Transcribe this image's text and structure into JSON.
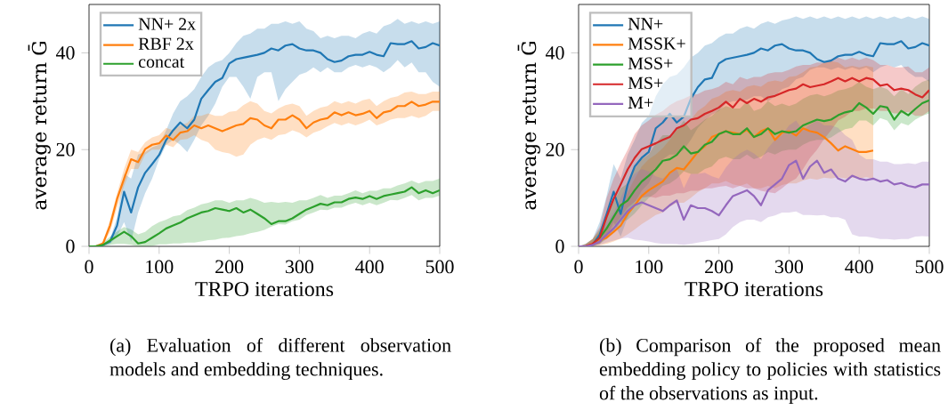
{
  "chart_data": [
    {
      "type": "line",
      "xlabel": "TRPO iterations",
      "ylabel": "average return Ḡ",
      "xlim": [
        0,
        500
      ],
      "ylim": [
        0,
        50
      ],
      "xticks": [
        0,
        100,
        200,
        300,
        400,
        500
      ],
      "yticks": [
        0,
        20,
        40
      ],
      "legend": "top left",
      "line_style": "solid",
      "x": [
        0,
        10,
        20,
        30,
        40,
        50,
        60,
        70,
        80,
        90,
        100,
        110,
        120,
        130,
        140,
        150,
        160,
        170,
        180,
        190,
        200,
        210,
        220,
        230,
        240,
        250,
        260,
        270,
        280,
        290,
        300,
        310,
        320,
        330,
        340,
        350,
        360,
        370,
        380,
        390,
        400,
        410,
        420,
        430,
        440,
        450,
        460,
        470,
        480,
        490,
        500
      ],
      "series": [
        {
          "name": "NN+ 2x",
          "color": "#1f77b4",
          "values": [
            0,
            0,
            0.3,
            1,
            4.3,
            11.3,
            7,
            12.2,
            15.2,
            17,
            18.9,
            22,
            24,
            25.6,
            24.4,
            26.2,
            30.5,
            32.3,
            34,
            34.8,
            37.8,
            38.7,
            39,
            39.3,
            39.6,
            40,
            40.9,
            40.5,
            41.5,
            41.8,
            40.9,
            40.5,
            40.5,
            40,
            38.7,
            38.1,
            38.4,
            39.3,
            39.6,
            39.6,
            40.2,
            39.6,
            39.3,
            42,
            41.8,
            41.8,
            42.4,
            40.9,
            41.2,
            42,
            41.5
          ],
          "lower": [
            0,
            0,
            0.1,
            0.5,
            2,
            5,
            1,
            7,
            11,
            14,
            18,
            21,
            22,
            21,
            19.5,
            22,
            25,
            27,
            29.5,
            33,
            35,
            35,
            33,
            30.5,
            35,
            36,
            36,
            30,
            32.5,
            34,
            35.5,
            36,
            37,
            36,
            37,
            36,
            36,
            37,
            37.5,
            37,
            37.5,
            37,
            36,
            37,
            38.5,
            37,
            38,
            36,
            36,
            34,
            33
          ],
          "upper": [
            0,
            0.1,
            0.5,
            1.5,
            6,
            15,
            14,
            19,
            19.5,
            20.5,
            21,
            24,
            27.5,
            30,
            31,
            32.5,
            35,
            37,
            38,
            38.5,
            40,
            42,
            43.5,
            44,
            45,
            45,
            46,
            46,
            46.5,
            46,
            46.5,
            45,
            44.5,
            43,
            43.5,
            43,
            43.5,
            43.5,
            43,
            44,
            44.5,
            44,
            45.5,
            46,
            47,
            46,
            46.5,
            46,
            46.5,
            46,
            46.5
          ]
        },
        {
          "name": "RBF 2x",
          "color": "#ff7f0e",
          "values": [
            0,
            0,
            0.6,
            4.3,
            9.8,
            14,
            18,
            17.4,
            20.1,
            21,
            21.3,
            22.9,
            22,
            23.5,
            23.8,
            25,
            24.4,
            25,
            24.4,
            23.8,
            24.4,
            25,
            25.3,
            26.5,
            26.2,
            25,
            24.4,
            26.2,
            26.2,
            27.1,
            26.2,
            24.4,
            25.6,
            26.2,
            26.5,
            27.7,
            27.1,
            27.7,
            27.1,
            27.4,
            28,
            26.5,
            27.7,
            28,
            29,
            29,
            29.9,
            29,
            29.3,
            29.9,
            29.9
          ],
          "lower": [
            0,
            0,
            0.3,
            3,
            8,
            12.5,
            16,
            16,
            19,
            20,
            20,
            21,
            20.5,
            22,
            22.2,
            23,
            22,
            21.5,
            20,
            19.5,
            19.2,
            18.5,
            19,
            21,
            22,
            22.5,
            22,
            23,
            23.2,
            24,
            23.5,
            22.5,
            23.5,
            24,
            24.8,
            25.5,
            25,
            25.5,
            25,
            25.5,
            26.2,
            25,
            25.5,
            26.2,
            26.5,
            26.5,
            27,
            26.5,
            27,
            28,
            28
          ],
          "upper": [
            0,
            0,
            1,
            5.5,
            11,
            16,
            20,
            19.5,
            21.5,
            22.5,
            23,
            24.5,
            24,
            25,
            25.5,
            27,
            27,
            27.5,
            27,
            27,
            27.8,
            28,
            29.2,
            30,
            29.5,
            28,
            27.5,
            28.5,
            29.2,
            29.5,
            29,
            27,
            28,
            28.7,
            29,
            30,
            29.5,
            30,
            29.5,
            30.2,
            30.5,
            29,
            30,
            30.7,
            31,
            31.8,
            32,
            31.5,
            31.5,
            32,
            32
          ]
        },
        {
          "name": "concat",
          "color": "#2ca02c",
          "values": [
            0,
            0,
            0.3,
            1.2,
            2.1,
            3,
            2.1,
            0.6,
            0.9,
            1.8,
            2.7,
            3.7,
            4.3,
            4.9,
            5.8,
            6.4,
            7,
            7.3,
            7.9,
            7.6,
            7.3,
            7.9,
            7,
            7.6,
            6.7,
            5.8,
            4.6,
            5.2,
            5.2,
            5.8,
            6.7,
            7.6,
            8.2,
            8.8,
            8.5,
            9.1,
            9.1,
            9.8,
            10.1,
            9.8,
            10.4,
            9.8,
            10.4,
            10.7,
            11,
            11.3,
            12.2,
            11,
            11.6,
            11,
            11.6
          ],
          "lower": [
            0,
            0,
            0.05,
            0.3,
            0.5,
            0.5,
            0.3,
            0,
            0,
            0.1,
            0.4,
            0.4,
            0.6,
            0.6,
            0.8,
            0.8,
            1,
            1.3,
            1.4,
            1.7,
            1.8,
            2.1,
            2.3,
            2.7,
            3,
            3.4,
            4.1,
            4.6,
            4.5,
            5.2,
            5.5,
            6.5,
            7,
            7.6,
            7.5,
            8,
            8,
            8.6,
            9,
            8.5,
            9,
            8.5,
            9,
            9.6,
            9.5,
            10,
            10.6,
            9.5,
            10,
            10,
            10.5
          ],
          "upper": [
            0,
            0.3,
            0.8,
            2,
            3.1,
            4,
            3.5,
            2.5,
            3,
            4.2,
            5,
            5.5,
            6.2,
            6.5,
            7.5,
            8,
            8.7,
            9,
            9.5,
            9.5,
            9,
            9.5,
            9.5,
            10,
            9.6,
            9,
            9.2,
            9,
            9.2,
            9,
            9.5,
            9.5,
            10,
            10.6,
            10,
            10.5,
            10.5,
            11,
            11.6,
            11,
            11.5,
            11.5,
            12,
            12,
            12.6,
            13,
            13.6,
            13,
            13.5,
            13.5,
            14
          ]
        }
      ],
      "annotations": [
        "(a) Evaluation of different observation models and embedding techniques."
      ]
    },
    {
      "type": "line",
      "xlabel": "TRPO iterations",
      "ylabel": "average return Ḡ",
      "xlim": [
        0,
        500
      ],
      "ylim": [
        0,
        50
      ],
      "xticks": [
        0,
        100,
        200,
        300,
        400,
        500
      ],
      "yticks": [
        0,
        20,
        40
      ],
      "legend": "top left",
      "line_style": "solid",
      "x": [
        0,
        10,
        20,
        30,
        40,
        50,
        60,
        70,
        80,
        90,
        100,
        110,
        120,
        130,
        140,
        150,
        160,
        170,
        180,
        190,
        200,
        210,
        220,
        230,
        240,
        250,
        260,
        270,
        280,
        290,
        300,
        310,
        320,
        330,
        340,
        350,
        360,
        370,
        380,
        390,
        400,
        410,
        420,
        430,
        440,
        450,
        460,
        470,
        480,
        490,
        500
      ],
      "series": [
        {
          "name": "NN+",
          "color": "#1f77b4",
          "values": [
            0,
            0,
            0.3,
            2.4,
            6.7,
            11.3,
            6.7,
            12.8,
            16.5,
            18.3,
            19.5,
            24.4,
            25.6,
            27.4,
            25.6,
            26.8,
            30.5,
            32.9,
            34.5,
            34.8,
            37.8,
            38.7,
            39,
            39.3,
            39.6,
            40,
            40.9,
            40.5,
            41.5,
            41.8,
            40.9,
            40.5,
            40.5,
            40,
            38.7,
            38.1,
            38.4,
            39.3,
            39.6,
            39.6,
            40.2,
            39.6,
            39.3,
            42,
            41.8,
            41.8,
            42.4,
            40.9,
            41.2,
            42,
            41.5
          ],
          "lower": [
            0,
            0,
            0.1,
            0.5,
            2,
            5,
            2,
            6,
            9,
            11.5,
            13,
            16,
            18,
            19,
            19,
            20,
            22,
            24.5,
            26,
            27.2,
            28,
            29.5,
            30,
            30,
            30.3,
            31,
            31,
            30,
            31,
            32.5,
            33,
            34.5,
            35,
            36.5,
            37,
            37,
            36.5,
            37,
            36.5,
            37,
            36.5,
            37,
            36,
            37,
            37.5,
            37,
            37.5,
            36,
            35,
            35,
            34
          ],
          "upper": [
            0,
            0.5,
            1.5,
            5,
            10.5,
            17,
            14,
            19,
            22,
            25.5,
            27,
            31,
            33.5,
            35,
            35.5,
            37,
            39,
            40,
            41.5,
            42,
            43.2,
            44,
            44,
            45,
            45.5,
            45,
            46,
            46.5,
            46,
            46.7,
            47,
            47.5,
            47,
            47.5,
            47,
            47.5,
            47,
            47.5,
            47,
            47.5,
            47,
            47.5,
            47,
            47.5,
            47,
            47.5,
            47,
            47.5,
            47,
            47.5,
            47
          ]
        },
        {
          "name": "MSSK+",
          "color": "#ff7f0e",
          "values": [
            0,
            0,
            0.6,
            1.2,
            1.8,
            3,
            4.3,
            6.7,
            8.5,
            10.4,
            11.6,
            12.5,
            13.4,
            15.2,
            16.2,
            15.9,
            17.7,
            19.5,
            20.7,
            22.6,
            23.2,
            23.8,
            23.5,
            23.2,
            24.1,
            22.6,
            23.8,
            24.4,
            22,
            23.5,
            23.8,
            22.9,
            24.4,
            23.8,
            23.5,
            22.6,
            21.3,
            19.8,
            20.7,
            20.1,
            19.5,
            19.5,
            19.8,
            null,
            null,
            null,
            null,
            null,
            null,
            null,
            null
          ],
          "lower": [
            0,
            0,
            0.05,
            0.2,
            0.5,
            1,
            1.6,
            2.5,
            3.5,
            4.6,
            5.5,
            6.5,
            7,
            8.2,
            9,
            9,
            10,
            11.2,
            12,
            13,
            13,
            13.5,
            12.8,
            12.5,
            13,
            12,
            12,
            12.5,
            12,
            12.7,
            13,
            13,
            13.6,
            14,
            13.8,
            14.2,
            14,
            14.3,
            14,
            14.2,
            14,
            14.3,
            14,
            null,
            null,
            null,
            null,
            null,
            null,
            null,
            null
          ],
          "upper": [
            0,
            0.3,
            1.5,
            3,
            4.2,
            6,
            8.5,
            11.2,
            14,
            16.5,
            18,
            19,
            20.3,
            22,
            24,
            25,
            26.2,
            28,
            29,
            30.5,
            31,
            32,
            32.3,
            32,
            33,
            33.3,
            33,
            34,
            34.3,
            34,
            35,
            35.2,
            36,
            37,
            37.2,
            38,
            38.3,
            38,
            37,
            37.3,
            37,
            37.3,
            37,
            null,
            null,
            null,
            null,
            null,
            null,
            null,
            null
          ]
        },
        {
          "name": "MSS+",
          "color": "#2ca02c",
          "values": [
            null,
            null,
            0.5,
            1.8,
            3.7,
            6.1,
            8.5,
            9.5,
            11.6,
            13.4,
            14.6,
            15.9,
            17.7,
            18,
            18.9,
            20.7,
            19.2,
            19.5,
            21,
            21.6,
            23.2,
            23.8,
            23.2,
            23.2,
            24.4,
            22.6,
            23.2,
            24.4,
            23.2,
            23.8,
            23.5,
            23.8,
            25,
            25.6,
            26.2,
            25.9,
            26.2,
            27.1,
            27.7,
            28,
            29.6,
            28.7,
            27.4,
            29,
            28.7,
            26.2,
            28,
            27.1,
            28.4,
            29.6,
            30.2
          ],
          "lower": [
            0,
            0,
            0.1,
            0.5,
            1.5,
            3,
            5,
            5.5,
            6.8,
            8.5,
            10,
            11,
            12.5,
            13,
            14,
            15.5,
            15,
            15,
            16,
            16.5,
            18,
            18.5,
            18,
            18,
            19,
            18,
            18.5,
            19.5,
            19,
            19.7,
            20,
            20,
            21,
            21.7,
            22,
            22,
            22.5,
            23.5,
            24.2,
            24.5,
            26,
            26,
            25,
            26.5,
            26,
            24,
            25.5,
            25,
            26.2,
            27,
            27.5
          ],
          "upper": [
            0,
            0.5,
            1.5,
            3.5,
            6,
            9.2,
            12,
            13,
            16,
            18,
            19,
            21.3,
            23,
            23,
            24,
            26,
            24,
            25,
            26.2,
            27,
            28.2,
            29,
            28.5,
            28.5,
            30,
            28,
            28.5,
            30,
            29,
            29.5,
            29,
            29.5,
            30.5,
            31.2,
            31.5,
            31,
            31.5,
            32.2,
            32.5,
            33,
            34,
            33,
            32.5,
            33,
            32.5,
            31,
            32.5,
            31.5,
            33,
            34,
            34.5
          ]
        },
        {
          "name": "MS+",
          "color": "#d62728",
          "values": [
            0,
            0,
            0.5,
            1.8,
            6.1,
            9.8,
            12.8,
            15.9,
            18.3,
            20.1,
            20.7,
            21.3,
            22,
            22.6,
            24.4,
            25,
            26.2,
            26.5,
            27.4,
            28,
            28.7,
            29.9,
            28.7,
            30.5,
            29.6,
            30.5,
            29.9,
            30.8,
            31.1,
            31.7,
            32.3,
            32.6,
            33.5,
            32.9,
            33.2,
            33.5,
            34.1,
            34.8,
            34.1,
            34.8,
            34.1,
            34.8,
            34.5,
            33.2,
            33.5,
            32.3,
            32.6,
            32.3,
            31.4,
            30.8,
            32.3
          ],
          "lower": [
            0,
            0,
            0.1,
            0.5,
            2,
            4.2,
            6,
            8,
            9.2,
            10,
            10.3,
            10,
            10.5,
            10.5,
            11,
            11,
            11.5,
            11.5,
            12,
            12,
            12.3,
            12.5,
            12,
            12.5,
            12,
            12,
            11.5,
            11.2,
            11,
            12,
            13.2,
            14,
            16,
            18.3,
            20,
            22.2,
            24,
            26,
            26.8,
            28,
            28,
            28.5,
            28.5,
            28,
            28,
            27.5,
            27.5,
            27.8,
            27,
            27,
            28
          ],
          "upper": [
            0,
            0.5,
            1.5,
            4,
            10,
            14,
            17.2,
            20,
            23.2,
            25,
            26,
            27.2,
            28,
            29.2,
            30,
            30.5,
            31.2,
            31.5,
            32.2,
            32.5,
            33,
            34,
            33.5,
            35,
            34.5,
            35,
            35,
            35.7,
            36,
            36,
            36.5,
            37.2,
            37.5,
            37.5,
            38,
            38,
            38.7,
            39,
            38.5,
            39,
            38.5,
            39,
            38.5,
            37.5,
            37.5,
            37,
            37,
            37.2,
            36,
            36,
            37
          ]
        },
        {
          "name": "M+",
          "color": "#9467bd",
          "values": [
            0,
            0,
            0.3,
            1,
            2.4,
            3.7,
            5.5,
            7.3,
            8.5,
            9.1,
            8.5,
            7.9,
            7.3,
            8.5,
            9.5,
            5.5,
            8.5,
            7.9,
            7.9,
            7.3,
            6.4,
            8.5,
            10.4,
            11,
            11.6,
            10.4,
            8.5,
            11.6,
            12.8,
            14,
            16.8,
            17.7,
            14,
            16.5,
            17.7,
            15.2,
            15.9,
            14,
            13.4,
            14.6,
            14,
            13.7,
            14,
            13.4,
            13.7,
            12.8,
            13.1,
            12.5,
            12.2,
            12.8,
            12.8
          ],
          "lower": [
            0,
            0,
            0.1,
            0.3,
            0.8,
            1.2,
            1.6,
            1.8,
            1.4,
            1.25,
            1,
            0.7,
            0.5,
            0.5,
            0.45,
            0.3,
            0.5,
            0.8,
            1,
            1.3,
            1.5,
            2.5,
            4,
            5,
            5.5,
            5.5,
            5,
            6,
            6.4,
            7,
            7,
            7.2,
            6.5,
            6.5,
            6.4,
            6.5,
            6,
            6,
            5.5,
            2.5,
            2,
            2,
            1.8,
            1.5,
            1.5,
            1.4,
            1.5,
            1.5,
            2,
            2.1,
            2
          ],
          "upper": [
            0,
            0.3,
            1,
            2.5,
            5,
            7,
            10,
            13.2,
            15,
            16,
            15.5,
            14.5,
            14,
            15.2,
            16,
            12,
            15,
            15,
            15.2,
            14.5,
            14,
            16.3,
            18,
            19.2,
            20,
            19.2,
            18,
            20.3,
            22,
            23,
            25,
            26,
            24,
            25.2,
            26,
            25,
            25,
            24.5,
            23,
            22,
            19,
            18,
            18,
            17.5,
            17.5,
            17,
            17,
            17.2,
            17,
            17.5,
            17.5
          ]
        }
      ],
      "annotations": [
        "(b) Comparison of the proposed mean embedding policy to policies with statistics of the observations as input."
      ]
    }
  ]
}
